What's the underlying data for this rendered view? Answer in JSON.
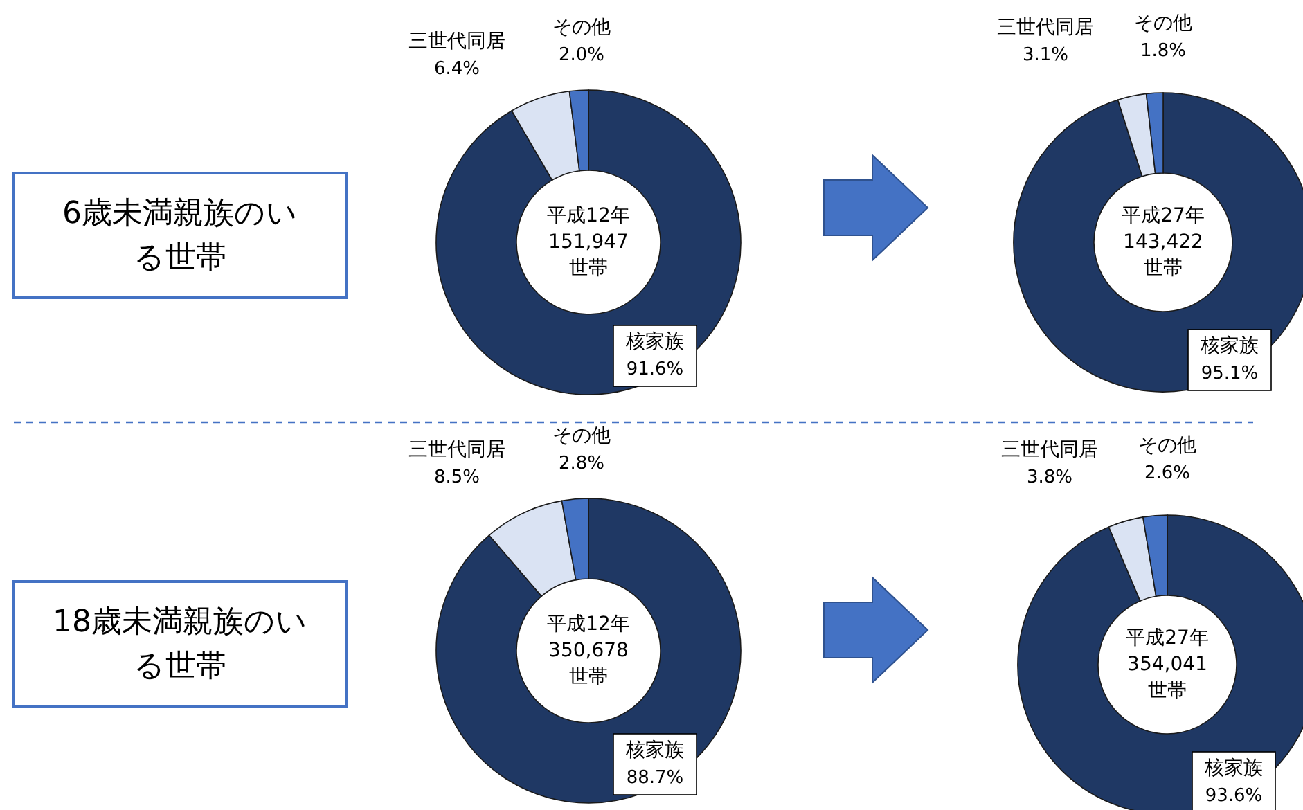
{
  "chart_data": [
    {
      "type": "donut",
      "title": "6歳未満親族のいる世帯",
      "annotations": [
        "平成12年",
        "151,947",
        "世帯"
      ],
      "categories": [
        "核家族",
        "三世代同居",
        "その他"
      ],
      "values": [
        91.6,
        6.4,
        2.0
      ],
      "value_labels": [
        "91.6%",
        "6.4%",
        "2.0%"
      ],
      "colors": [
        "#1f3864",
        "#dae3f3",
        "#4472c4"
      ]
    },
    {
      "type": "donut",
      "annotations": [
        "平成27年",
        "143,422",
        "世帯"
      ],
      "categories": [
        "核家族",
        "三世代同居",
        "その他"
      ],
      "values": [
        95.1,
        3.1,
        1.8
      ],
      "value_labels": [
        "95.1%",
        "3.1%",
        "1.8%"
      ],
      "colors": [
        "#1f3864",
        "#dae3f3",
        "#4472c4"
      ]
    },
    {
      "type": "donut",
      "title": "18歳未満親族のいる世帯",
      "annotations": [
        "平成12年",
        "350,678",
        "世帯"
      ],
      "categories": [
        "核家族",
        "三世代同居",
        "その他"
      ],
      "values": [
        88.7,
        8.5,
        2.8
      ],
      "value_labels": [
        "88.7%",
        "8.5%",
        "2.8%"
      ],
      "colors": [
        "#1f3864",
        "#dae3f3",
        "#4472c4"
      ]
    },
    {
      "type": "donut",
      "annotations": [
        "平成27年",
        "354,041",
        "世帯"
      ],
      "categories": [
        "核家族",
        "三世代同居",
        "その他"
      ],
      "values": [
        93.6,
        3.8,
        2.6
      ],
      "value_labels": [
        "93.6%",
        "3.8%",
        "2.6%"
      ],
      "colors": [
        "#1f3864",
        "#dae3f3",
        "#4472c4"
      ]
    }
  ]
}
